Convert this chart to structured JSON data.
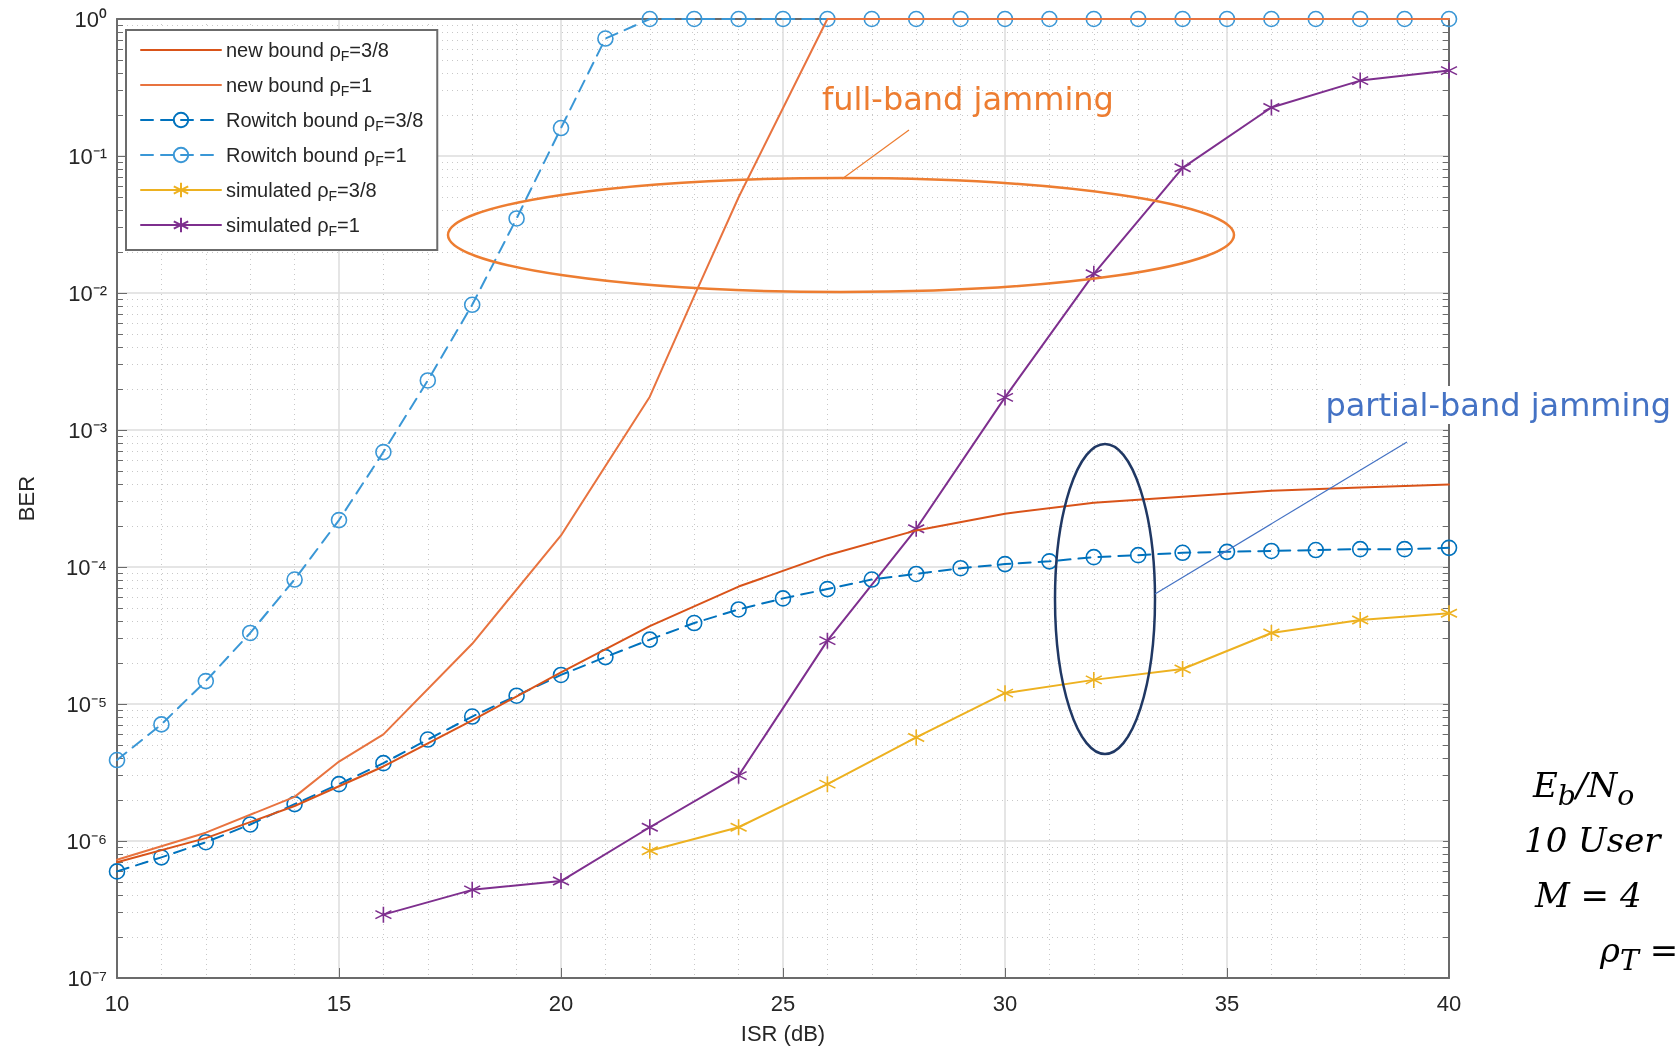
{
  "chart_data": {
    "type": "line",
    "xlabel": "ISR (dB)",
    "ylabel": "BER",
    "xlim": [
      10,
      40
    ],
    "xticks": [
      10,
      15,
      20,
      25,
      30,
      35,
      40
    ],
    "ylim": [
      1e-07,
      1
    ],
    "yticks": [
      {
        "value": 1e-07,
        "label": "10⁻⁷"
      },
      {
        "value": 1e-06,
        "label": "10⁻⁶"
      },
      {
        "value": 1e-05,
        "label": "10⁻⁵"
      },
      {
        "value": 0.0001,
        "label": "10⁻⁴"
      },
      {
        "value": 0.001,
        "label": "10⁻³"
      },
      {
        "value": 0.01,
        "label": "10⁻²"
      },
      {
        "value": 0.1,
        "label": "10⁻¹"
      },
      {
        "value": 1,
        "label": "10⁰"
      }
    ],
    "log": "y",
    "grid": true,
    "legend": "top left",
    "series": [
      {
        "name": "new bound ρ$_{F}$=3/8",
        "color": "#d95319",
        "marker": "none",
        "line_style": "solid",
        "x": [
          10,
          12,
          14,
          16,
          18,
          20,
          22,
          24,
          26,
          28,
          30,
          32,
          34,
          36,
          38,
          40
        ],
        "values": [
          7e-07,
          1.05e-06,
          1.8e-06,
          3.5e-06,
          7.6e-06,
          1.7e-05,
          3.7e-05,
          7.2e-05,
          0.000122,
          0.000185,
          0.000245,
          0.000295,
          0.000325,
          0.00036,
          0.00038,
          0.0004
        ]
      },
      {
        "name": "new bound ρ$_{F}$=1",
        "color": "#e8733f",
        "marker": "none",
        "line_style": "solid",
        "x": [
          10,
          12,
          14,
          15,
          16,
          18,
          20,
          22,
          23,
          24,
          26,
          28,
          30,
          32,
          34,
          36,
          38,
          40
        ],
        "values": [
          7.3e-07,
          1.15e-06,
          2.1e-06,
          3.8e-06,
          6e-06,
          2.75e-05,
          0.00017,
          0.00175,
          0.0095,
          0.05,
          1,
          1,
          1,
          1,
          1,
          1,
          1,
          1
        ]
      },
      {
        "name": "Rowitch bound ρ$_{F}$=3/8",
        "color": "#0072bd",
        "marker": "circle",
        "line_style": "dashed",
        "x": [
          10,
          11,
          12,
          13,
          14,
          15,
          16,
          17,
          18,
          19,
          20,
          21,
          22,
          23,
          24,
          25,
          26,
          27,
          28,
          29,
          30,
          31,
          32,
          33,
          34,
          35,
          36,
          37,
          38,
          39,
          40
        ],
        "values": [
          6e-07,
          7.6e-07,
          9.8e-07,
          1.32e-06,
          1.86e-06,
          2.6e-06,
          3.7e-06,
          5.5e-06,
          8.1e-06,
          1.15e-05,
          1.63e-05,
          2.2e-05,
          2.95e-05,
          3.9e-05,
          4.9e-05,
          5.9e-05,
          6.9e-05,
          8.1e-05,
          8.9e-05,
          9.8e-05,
          0.000105,
          0.00011,
          0.000118,
          0.000122,
          0.000127,
          0.000129,
          0.000131,
          0.000133,
          0.000135,
          0.000135,
          0.000138
        ]
      },
      {
        "name": "Rowitch bound ρ$_{F}$=1",
        "color": "#3a97d6",
        "marker": "circle",
        "line_style": "dashed",
        "x": [
          10,
          11,
          12,
          13,
          14,
          15,
          16,
          17,
          18,
          19,
          20,
          21,
          22,
          23,
          24,
          25,
          26,
          27,
          28,
          29,
          30,
          31,
          32,
          33,
          34,
          35,
          36,
          37,
          38,
          39,
          40
        ],
        "values": [
          3.9e-06,
          7.1e-06,
          1.47e-05,
          3.3e-05,
          8.1e-05,
          0.00022,
          0.00069,
          0.0023,
          0.0082,
          0.035,
          0.16,
          0.72,
          1,
          1,
          1,
          1,
          1,
          1,
          1,
          1,
          1,
          1,
          1,
          1,
          1,
          1,
          1,
          1,
          1,
          1,
          1
        ]
      },
      {
        "name": "simulated ρ$_{F}$=3/8",
        "color": "#edb120",
        "marker": "cross",
        "line_style": "solid",
        "x": [
          22,
          24,
          26,
          28,
          30,
          32,
          34,
          36,
          38,
          40
        ],
        "values": [
          8.5e-07,
          1.26e-06,
          2.6e-06,
          5.7e-06,
          1.2e-05,
          1.5e-05,
          1.8e-05,
          3.3e-05,
          4.1e-05,
          4.6e-05
        ]
      },
      {
        "name": "simulated ρ$_{F}$=1",
        "color": "#7e2f8e",
        "marker": "cross",
        "line_style": "solid",
        "x": [
          16,
          18,
          20,
          22,
          24,
          26,
          28,
          30,
          32,
          34,
          36,
          38,
          40
        ],
        "values": [
          2.9e-07,
          4.4e-07,
          5.1e-07,
          1.26e-06,
          3e-06,
          2.9e-05,
          0.00019,
          0.00173,
          0.0138,
          0.082,
          0.226,
          0.355,
          0.42
        ]
      }
    ],
    "annotations": [
      "full-band jamming",
      "partial-band jamming",
      "E$_{b}$/N$_{o}$",
      "10 User",
      "M = 4",
      "ρ$_{T}$ ="
    ]
  }
}
